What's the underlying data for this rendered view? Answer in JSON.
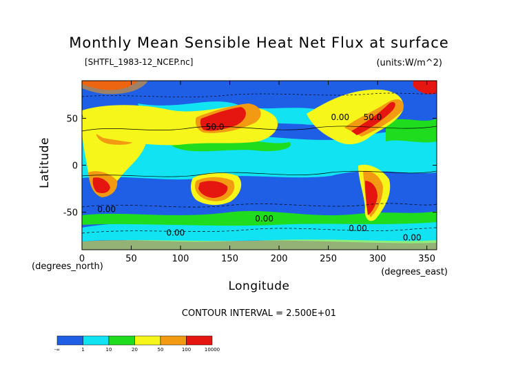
{
  "chart_data": {
    "type": "heatmap",
    "title": "Monthly Mean Sensible Heat Net Flux at surface",
    "file_label": "[SHTFL_1983-12_NCEP.nc]",
    "units_label": "(units:W/m^2)",
    "xlabel": "Longitude",
    "ylabel": "Latitude",
    "x_units": "(degrees_east)",
    "y_units": "(degrees_north)",
    "xlim": [
      0,
      360
    ],
    "ylim": [
      -90,
      90
    ],
    "x_ticks": [
      0,
      50,
      100,
      150,
      200,
      250,
      300,
      350
    ],
    "y_ticks": [
      -50,
      0,
      50
    ],
    "contour_interval": "CONTOUR INTERVAL = 2.500E+01",
    "contour_labels": [
      {
        "text": "50.0",
        "x": 135,
        "y": 38
      },
      {
        "text": "50.0",
        "x": 295,
        "y": 48
      },
      {
        "text": "0.00",
        "x": 25,
        "y": -50
      },
      {
        "text": "0.00",
        "x": 95,
        "y": -75
      },
      {
        "text": "0.00",
        "x": 185,
        "y": -60
      },
      {
        "text": "0.00",
        "x": 280,
        "y": -70
      },
      {
        "text": "0.00",
        "x": 335,
        "y": -80
      },
      {
        "text": "0.00",
        "x": 262,
        "y": 48
      }
    ],
    "legend": {
      "bins": [
        {
          "label": "-∞",
          "color": "#1f5fe6"
        },
        {
          "label": "1",
          "color": "#11e3f2"
        },
        {
          "label": "10",
          "color": "#1fdc1f"
        },
        {
          "label": "20",
          "color": "#f6f61a"
        },
        {
          "label": "50",
          "color": "#f19a12"
        },
        {
          "label": "100",
          "color": "#e51510"
        },
        {
          "label": "10000",
          "color": ""
        }
      ]
    }
  }
}
